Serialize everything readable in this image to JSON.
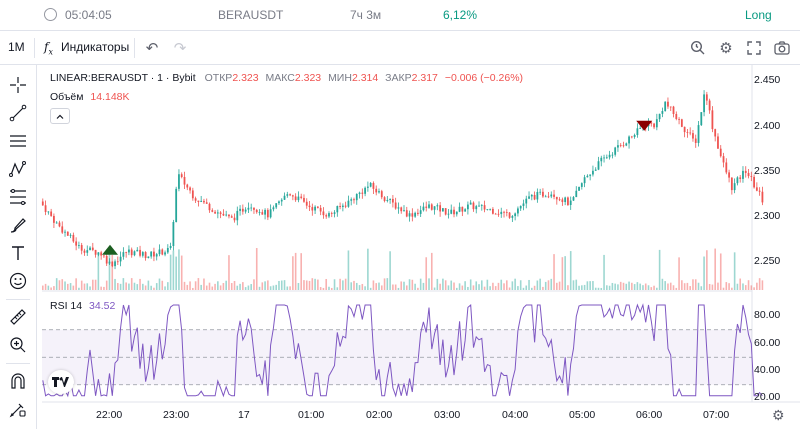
{
  "top": {
    "time": "05:04:05",
    "symbol": "BERAUSDT",
    "duration": "7ч 3м",
    "pnl": "6,12%",
    "side": "Long"
  },
  "toolbar": {
    "interval": "1M",
    "indicators_label": "Индикаторы",
    "indicators_icon": "fx-icon",
    "undo_icon": "undo-icon",
    "redo_icon": "redo-icon"
  },
  "legend": {
    "symbol": "LINEAR:BERAUSDT · 1 · Bybit",
    "open_label": "ОТКР",
    "open": "2.323",
    "high_label": "МАКС",
    "high": "2.323",
    "low_label": "МИН",
    "low": "2.314",
    "close_label": "ЗАКР",
    "close": "2.317",
    "change": "−0.006 (−0.26%)",
    "volume_label": "Объём",
    "volume": "14.148K",
    "rsi_label": "RSI 14",
    "rsi": "34.52",
    "collapse_icon": "chevron-up-icon"
  },
  "price_axis": [
    "2.450",
    "2.400",
    "2.350",
    "2.300",
    "2.250"
  ],
  "rsi_axis": [
    "80.00",
    "60.00",
    "40.00",
    "20.00"
  ],
  "time_axis": [
    "22:00",
    "23:00",
    "17",
    "01:00",
    "02:00",
    "03:00",
    "04:00",
    "05:00",
    "06:00",
    "07:00"
  ],
  "colors": {
    "up": "#26a69a",
    "down": "#ef5350",
    "rsi": "#7e57c2",
    "text_muted": "#787b86",
    "pnl": "#089981",
    "buy_marker": "#1b5e20",
    "sell_marker": "#8b0000"
  },
  "chart_data": [
    {
      "type": "line",
      "title": "LINEAR:BERAUSDT · 1 · Bybit",
      "y_axis_ticks": [
        2.25,
        2.3,
        2.35,
        2.4,
        2.45
      ],
      "x_ticks": [
        "22:00",
        "23:00",
        "17",
        "01:00",
        "02:00",
        "03:00",
        "04:00",
        "05:00",
        "06:00",
        "07:00"
      ],
      "price_path_hours": [
        21.0,
        21.25,
        21.6,
        21.9,
        22.05,
        22.3,
        22.6,
        22.95,
        23.0,
        23.05,
        23.3,
        23.6,
        23.85,
        24.1,
        24.4,
        24.7,
        25.0,
        25.3,
        25.6,
        25.9,
        26.2,
        26.5,
        26.8,
        27.1,
        27.4,
        27.7,
        28.0,
        28.3,
        28.6,
        28.9,
        29.1,
        29.35,
        29.6,
        29.9,
        30.0,
        30.15,
        30.3,
        30.5,
        30.6,
        30.75
      ],
      "price_path_values": [
        2.315,
        2.29,
        2.263,
        2.258,
        2.245,
        2.26,
        2.255,
        2.262,
        2.31,
        2.345,
        2.32,
        2.305,
        2.295,
        2.312,
        2.3,
        2.325,
        2.31,
        2.3,
        2.315,
        2.333,
        2.315,
        2.3,
        2.31,
        2.302,
        2.31,
        2.306,
        2.3,
        2.32,
        2.325,
        2.312,
        2.34,
        2.36,
        2.375,
        2.393,
        2.402,
        2.4,
        2.425,
        2.405,
        2.395,
        2.38
      ],
      "price_path_values_tail": [
        2.44,
        2.4,
        2.36,
        2.33,
        2.35,
        2.317
      ],
      "price_path_hours_tail": [
        30.9,
        31.0,
        31.15,
        31.3,
        31.5,
        31.75
      ],
      "markers": [
        {
          "type": "buy",
          "time": 22.0,
          "price": 2.258
        },
        {
          "type": "sell",
          "time": 29.95,
          "price": 2.398
        }
      ]
    },
    {
      "type": "line",
      "title": "RSI 14",
      "y_axis_ticks": [
        20,
        40,
        60,
        80
      ],
      "bands": [
        30,
        50,
        70
      ],
      "last": 34.52
    }
  ]
}
